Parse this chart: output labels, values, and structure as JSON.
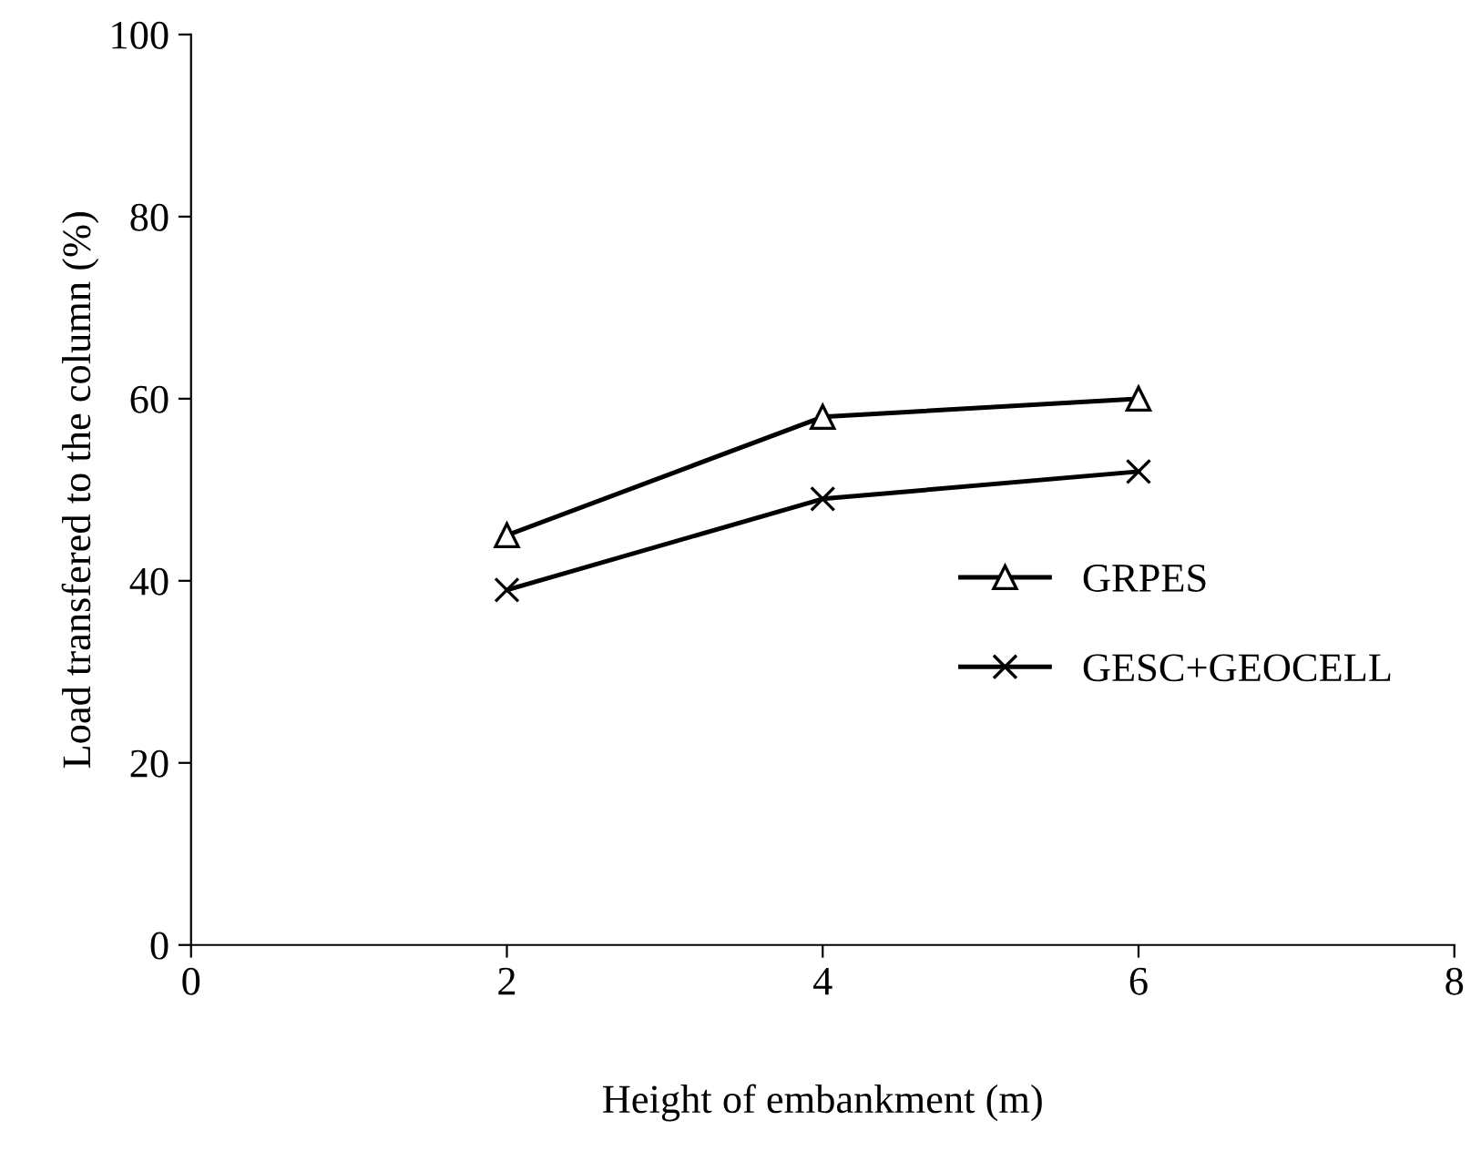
{
  "chart_data": {
    "type": "line",
    "xlabel": "Height of embankment (m)",
    "ylabel": "Load transfered to the column (%)",
    "x": [
      2,
      4,
      6
    ],
    "series": [
      {
        "name": "GRPES",
        "color": "#000000",
        "marker": "triangle",
        "values": [
          45,
          58,
          60
        ]
      },
      {
        "name": "GESC+GEOCELL",
        "color": "#000000",
        "marker": "cross",
        "values": [
          39,
          49,
          52
        ]
      }
    ],
    "xlim": [
      0,
      8
    ],
    "xticks": [
      0,
      2,
      4,
      6,
      8
    ],
    "ylim": [
      0,
      100
    ],
    "yticks": [
      0,
      20,
      40,
      60,
      80,
      100
    ],
    "grid": false,
    "legend": "right",
    "line_style": "solid"
  }
}
